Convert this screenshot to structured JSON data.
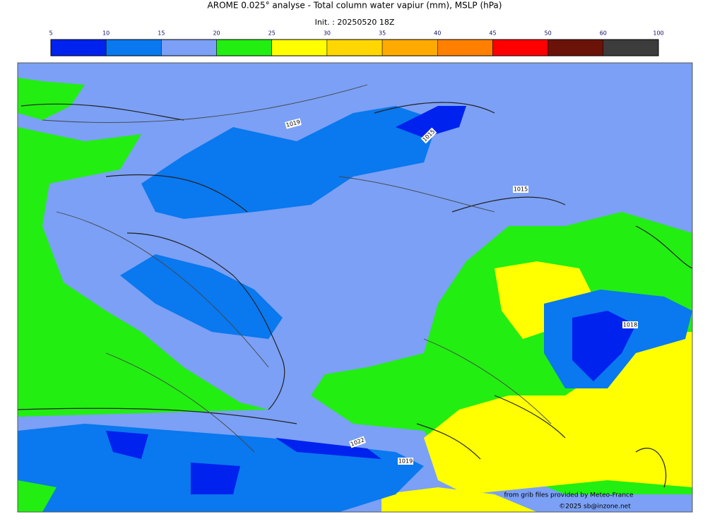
{
  "header": {
    "title": "AROME 0.025° analyse - Total column water vapiur (mm), MSLP (hPa)",
    "init": "Init. : 20250520 18Z"
  },
  "colorbar": {
    "ticks": [
      5,
      10,
      15,
      20,
      25,
      30,
      35,
      40,
      45,
      50,
      60,
      100
    ],
    "colors": [
      "#0022ee",
      "#0a78ee",
      "#7ba0f5",
      "#22ee11",
      "#ffff00",
      "#ffd700",
      "#ffaa00",
      "#ff8000",
      "#ff0000",
      "#6b1308",
      "#3c3c3c"
    ]
  },
  "map": {
    "isobar_labels": [
      "1019",
      "1015",
      "1015",
      "1018",
      "1022",
      "1019"
    ]
  },
  "footer": {
    "source": "from grib files provided by Meteo-France",
    "copyright": "©2025 sb@inzone.net"
  }
}
